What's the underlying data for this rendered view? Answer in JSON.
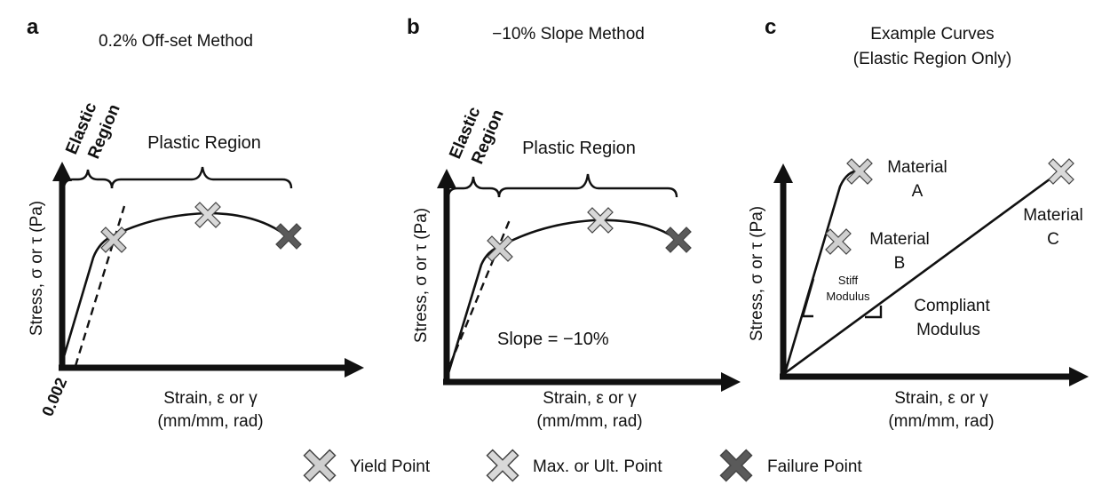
{
  "panels": {
    "a": {
      "label": "a",
      "title": "0.2% Off-set Method",
      "elastic_line1": "Elastic",
      "elastic_line2": "Region",
      "plastic": "Plastic Region",
      "ylabel": "Stress, σ or τ (Pa)",
      "xlabel_line1": "Strain, ε or γ",
      "xlabel_line2": "(mm/mm, rad)",
      "offset": "0.002"
    },
    "b": {
      "label": "b",
      "title": "−10% Slope Method",
      "elastic_line1": "Elastic",
      "elastic_line2": "Region",
      "plastic": "Plastic Region",
      "ylabel": "Stress, σ or τ (Pa)",
      "xlabel_line1": "Strain, ε or γ",
      "xlabel_line2": "(mm/mm, rad)",
      "slope": "Slope = −10%"
    },
    "c": {
      "label": "c",
      "title_line1": "Example Curves",
      "title_line2": "(Elastic Region Only)",
      "ylabel": "Stress, σ or τ (Pa)",
      "xlabel_line1": "Strain, ε or γ",
      "xlabel_line2": "(mm/mm, rad)",
      "material_a_line1": "Material",
      "material_a_line2": "A",
      "material_b_line1": "Material",
      "material_b_line2": "B",
      "material_c_line1": "Material",
      "material_c_line2": "C",
      "stiff_line1": "Stiff",
      "stiff_line2": "Modulus",
      "compliant_line1": "Compliant",
      "compliant_line2": "Modulus"
    }
  },
  "legend": {
    "yield": "Yield Point",
    "max": "Max. or Ult. Point",
    "failure": "Failure Point"
  },
  "colors": {
    "yield": "#cfcfcf",
    "max": "#d9d9d9",
    "failure": "#5a5a5a",
    "ink": "#111111"
  }
}
